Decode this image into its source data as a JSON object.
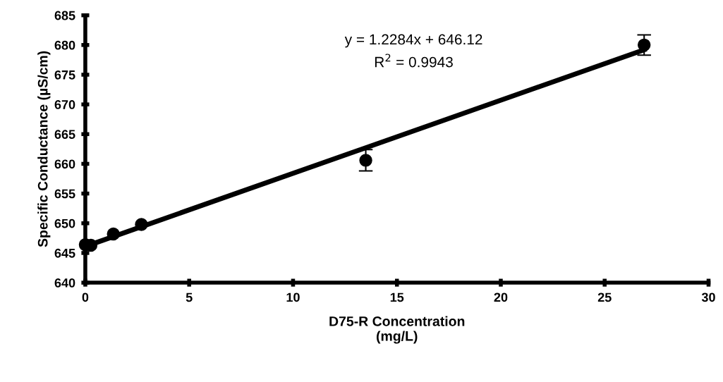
{
  "chart_data": {
    "type": "scatter",
    "xlabel": "D75-R Concentration\n(mg/L)",
    "ylabel": "Specific Conductance (µS/cm)",
    "xlim": [
      0,
      30
    ],
    "xticks": [
      0,
      5,
      10,
      15,
      20,
      25,
      30
    ],
    "ylim": [
      640,
      685
    ],
    "yticks": [
      640,
      645,
      650,
      655,
      660,
      665,
      670,
      675,
      680,
      685
    ],
    "grid": false,
    "series": [
      {
        "color": "#000000",
        "marker": "circle",
        "x": [
          0,
          0.27,
          1.35,
          2.7,
          13.5,
          26.9
        ],
        "values": [
          646.4,
          646.3,
          648.2,
          649.8,
          660.6,
          680.0
        ],
        "errors": [
          null,
          null,
          null,
          null,
          1.8,
          1.7
        ]
      },
      {
        "type": "line",
        "color": "#000000",
        "x": [
          0,
          26.9
        ],
        "values": [
          646.1,
          679.2
        ],
        "line_style": "solid"
      }
    ],
    "annotations": [
      "y = 1.2284x + 646.12",
      "R$^{2}$ = 0.9943"
    ]
  }
}
